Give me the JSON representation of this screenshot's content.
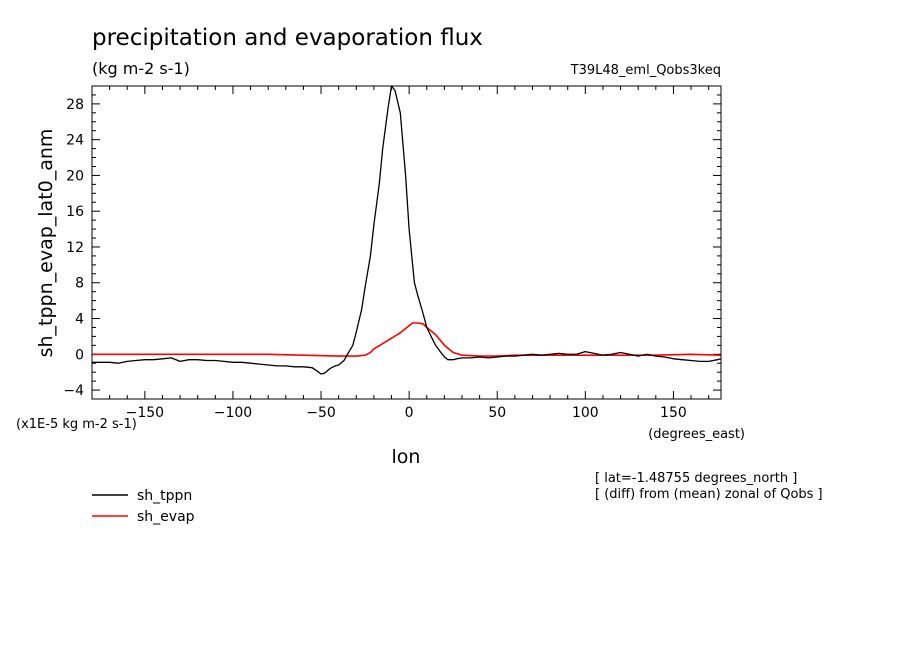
{
  "chart_data": {
    "type": "line",
    "title": "precipitation and evaporation flux",
    "subtitle": "(kg m-2 s-1)",
    "run_label": "T39L48_eml_Qobs3keq",
    "xlabel": "lon",
    "x_units": "(degrees_east)",
    "ylabel": "sh_tppn_evap_lat0_anm",
    "y_units": "(x1E-5 kg m-2 s-1)",
    "xlim": [
      -180,
      177
    ],
    "ylim": [
      -5,
      30
    ],
    "xticks": [
      -150,
      -100,
      -50,
      0,
      50,
      100,
      150
    ],
    "yticks": [
      -4,
      0,
      4,
      8,
      12,
      16,
      20,
      24,
      28
    ],
    "grid": false,
    "legend_position": "bottom-left",
    "notes": [
      "[ lat=-1.48755 degrees_north ]",
      "[ (diff) from (mean) zonal of Qobs ]"
    ],
    "series": [
      {
        "name": "sh_tppn",
        "color": "#000000",
        "x": [
          -180,
          -175,
          -170,
          -165,
          -160,
          -155,
          -150,
          -145,
          -140,
          -135,
          -130,
          -125,
          -120,
          -115,
          -110,
          -105,
          -100,
          -95,
          -90,
          -85,
          -80,
          -75,
          -70,
          -65,
          -60,
          -55,
          -52,
          -50,
          -48,
          -45,
          -42,
          -40,
          -37,
          -35,
          -32,
          -30,
          -27,
          -25,
          -22,
          -20,
          -17,
          -15,
          -12,
          -10,
          -8,
          -5,
          -2,
          0,
          3,
          5,
          8,
          10,
          13,
          15,
          18,
          20,
          22,
          25,
          27,
          30,
          35,
          40,
          45,
          50,
          55,
          60,
          65,
          70,
          75,
          80,
          85,
          90,
          95,
          100,
          105,
          110,
          115,
          120,
          125,
          130,
          135,
          140,
          145,
          150,
          155,
          160,
          165,
          170,
          175,
          177
        ],
        "y": [
          -0.9,
          -0.9,
          -0.9,
          -1.0,
          -0.8,
          -0.7,
          -0.6,
          -0.6,
          -0.5,
          -0.4,
          -0.8,
          -0.6,
          -0.6,
          -0.7,
          -0.7,
          -0.8,
          -0.9,
          -0.9,
          -1.0,
          -1.1,
          -1.2,
          -1.3,
          -1.3,
          -1.4,
          -1.4,
          -1.5,
          -1.9,
          -2.2,
          -2.1,
          -1.6,
          -1.3,
          -1.2,
          -0.7,
          0.0,
          1.0,
          2.5,
          5.0,
          7.5,
          11.0,
          14.5,
          19.0,
          23.0,
          27.5,
          30.0,
          29.5,
          27.0,
          20.0,
          14.0,
          8.0,
          6.5,
          4.5,
          3.0,
          1.8,
          1.0,
          0.2,
          -0.3,
          -0.6,
          -0.6,
          -0.5,
          -0.4,
          -0.4,
          -0.3,
          -0.4,
          -0.3,
          -0.2,
          -0.2,
          -0.1,
          0.0,
          -0.1,
          0.0,
          0.1,
          0.0,
          0.0,
          0.3,
          0.1,
          -0.1,
          0.0,
          0.2,
          0.0,
          -0.2,
          0.0,
          -0.2,
          -0.3,
          -0.5,
          -0.6,
          -0.7,
          -0.8,
          -0.8,
          -0.6,
          -0.5
        ]
      },
      {
        "name": "sh_evap",
        "color": "#ff0000",
        "x": [
          -180,
          -160,
          -140,
          -120,
          -100,
          -80,
          -60,
          -40,
          -30,
          -25,
          -22,
          -20,
          -15,
          -10,
          -5,
          0,
          2,
          5,
          8,
          10,
          15,
          20,
          25,
          30,
          40,
          50,
          60,
          80,
          100,
          120,
          140,
          160,
          177
        ],
        "y": [
          0.0,
          0.0,
          0.0,
          0.0,
          0.0,
          0.0,
          -0.1,
          -0.2,
          -0.2,
          -0.1,
          0.2,
          0.6,
          1.2,
          1.8,
          2.4,
          3.2,
          3.5,
          3.5,
          3.4,
          3.0,
          2.2,
          1.0,
          0.2,
          -0.1,
          -0.2,
          -0.2,
          -0.1,
          -0.1,
          -0.1,
          -0.1,
          -0.1,
          0.0,
          -0.1
        ]
      }
    ]
  }
}
